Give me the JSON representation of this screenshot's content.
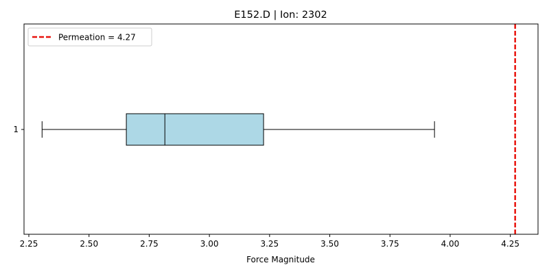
{
  "chart_data": {
    "type": "boxplot",
    "title": "E152.D | Ion: 2302",
    "xlabel": "Force Magnitude",
    "ylabel": "",
    "orientation": "horizontal",
    "xlim": [
      2.23,
      4.365
    ],
    "xticks": [
      "2.25",
      "2.50",
      "2.75",
      "3.00",
      "3.25",
      "3.50",
      "3.75",
      "4.00",
      "4.25"
    ],
    "yticks": [
      "1"
    ],
    "boxes": [
      {
        "category": "1",
        "whisker_low": 2.305,
        "q1": 2.655,
        "median": 2.815,
        "q3": 3.225,
        "whisker_high": 3.935,
        "fill_color": "#add8e6"
      }
    ],
    "reference_line": {
      "value": 4.27,
      "label": "Permeation = 4.27",
      "color": "#e8120c",
      "style": "dashed"
    },
    "legend": {
      "placement": "top-left",
      "entries": [
        "Permeation = 4.27"
      ]
    },
    "grid": false
  }
}
